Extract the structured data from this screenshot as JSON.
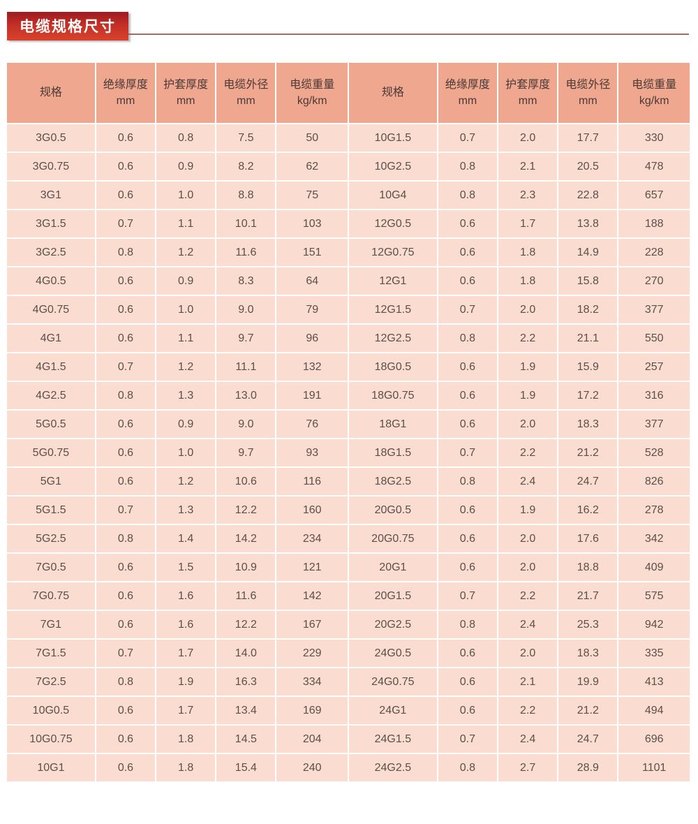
{
  "page": {
    "background": "#ffffff"
  },
  "title": {
    "text": "电缆规格尺寸",
    "text_color": "#ffffff",
    "badge_gradient_top": "#9e1b1f",
    "badge_gradient_mid": "#c22f26",
    "badge_gradient_bottom": "#d8432d",
    "underline_color": "#9b6f68"
  },
  "table": {
    "header_bg": "#f0a78f",
    "row_bg": "#fadcd1",
    "header_text_color": "#4a3a35",
    "body_text_color": "#5c4f49",
    "columns": [
      {
        "label": "规格",
        "unit": ""
      },
      {
        "label": "绝缘厚度",
        "unit": "mm"
      },
      {
        "label": "护套厚度",
        "unit": "mm"
      },
      {
        "label": "电缆外径",
        "unit": "mm"
      },
      {
        "label": "电缆重量",
        "unit": "kg/km"
      }
    ],
    "left_rows": [
      [
        "3G0.5",
        "0.6",
        "0.8",
        "7.5",
        "50"
      ],
      [
        "3G0.75",
        "0.6",
        "0.9",
        "8.2",
        "62"
      ],
      [
        "3G1",
        "0.6",
        "1.0",
        "8.8",
        "75"
      ],
      [
        "3G1.5",
        "0.7",
        "1.1",
        "10.1",
        "103"
      ],
      [
        "3G2.5",
        "0.8",
        "1.2",
        "11.6",
        "151"
      ],
      [
        "4G0.5",
        "0.6",
        "0.9",
        "8.3",
        "64"
      ],
      [
        "4G0.75",
        "0.6",
        "1.0",
        "9.0",
        "79"
      ],
      [
        "4G1",
        "0.6",
        "1.1",
        "9.7",
        "96"
      ],
      [
        "4G1.5",
        "0.7",
        "1.2",
        "11.1",
        "132"
      ],
      [
        "4G2.5",
        "0.8",
        "1.3",
        "13.0",
        "191"
      ],
      [
        "5G0.5",
        "0.6",
        "0.9",
        "9.0",
        "76"
      ],
      [
        "5G0.75",
        "0.6",
        "1.0",
        "9.7",
        "93"
      ],
      [
        "5G1",
        "0.6",
        "1.2",
        "10.6",
        "116"
      ],
      [
        "5G1.5",
        "0.7",
        "1.3",
        "12.2",
        "160"
      ],
      [
        "5G2.5",
        "0.8",
        "1.4",
        "14.2",
        "234"
      ],
      [
        "7G0.5",
        "0.6",
        "1.5",
        "10.9",
        "121"
      ],
      [
        "7G0.75",
        "0.6",
        "1.6",
        "11.6",
        "142"
      ],
      [
        "7G1",
        "0.6",
        "1.6",
        "12.2",
        "167"
      ],
      [
        "7G1.5",
        "0.7",
        "1.7",
        "14.0",
        "229"
      ],
      [
        "7G2.5",
        "0.8",
        "1.9",
        "16.3",
        "334"
      ],
      [
        "10G0.5",
        "0.6",
        "1.7",
        "13.4",
        "169"
      ],
      [
        "10G0.75",
        "0.6",
        "1.8",
        "14.5",
        "204"
      ],
      [
        "10G1",
        "0.6",
        "1.8",
        "15.4",
        "240"
      ]
    ],
    "right_rows": [
      [
        "10G1.5",
        "0.7",
        "2.0",
        "17.7",
        "330"
      ],
      [
        "10G2.5",
        "0.8",
        "2.1",
        "20.5",
        "478"
      ],
      [
        "10G4",
        "0.8",
        "2.3",
        "22.8",
        "657"
      ],
      [
        "12G0.5",
        "0.6",
        "1.7",
        "13.8",
        "188"
      ],
      [
        "12G0.75",
        "0.6",
        "1.8",
        "14.9",
        "228"
      ],
      [
        "12G1",
        "0.6",
        "1.8",
        "15.8",
        "270"
      ],
      [
        "12G1.5",
        "0.7",
        "2.0",
        "18.2",
        "377"
      ],
      [
        "12G2.5",
        "0.8",
        "2.2",
        "21.1",
        "550"
      ],
      [
        "18G0.5",
        "0.6",
        "1.9",
        "15.9",
        "257"
      ],
      [
        "18G0.75",
        "0.6",
        "1.9",
        "17.2",
        "316"
      ],
      [
        "18G1",
        "0.6",
        "2.0",
        "18.3",
        "377"
      ],
      [
        "18G1.5",
        "0.7",
        "2.2",
        "21.2",
        "528"
      ],
      [
        "18G2.5",
        "0.8",
        "2.4",
        "24.7",
        "826"
      ],
      [
        "20G0.5",
        "0.6",
        "1.9",
        "16.2",
        "278"
      ],
      [
        "20G0.75",
        "0.6",
        "2.0",
        "17.6",
        "342"
      ],
      [
        "20G1",
        "0.6",
        "2.0",
        "18.8",
        "409"
      ],
      [
        "20G1.5",
        "0.7",
        "2.2",
        "21.7",
        "575"
      ],
      [
        "20G2.5",
        "0.8",
        "2.4",
        "25.3",
        "942"
      ],
      [
        "24G0.5",
        "0.6",
        "2.0",
        "18.3",
        "335"
      ],
      [
        "24G0.75",
        "0.6",
        "2.1",
        "19.9",
        "413"
      ],
      [
        "24G1",
        "0.6",
        "2.2",
        "21.2",
        "494"
      ],
      [
        "24G1.5",
        "0.7",
        "2.4",
        "24.7",
        "696"
      ],
      [
        "24G2.5",
        "0.8",
        "2.7",
        "28.9",
        "1101"
      ]
    ]
  }
}
